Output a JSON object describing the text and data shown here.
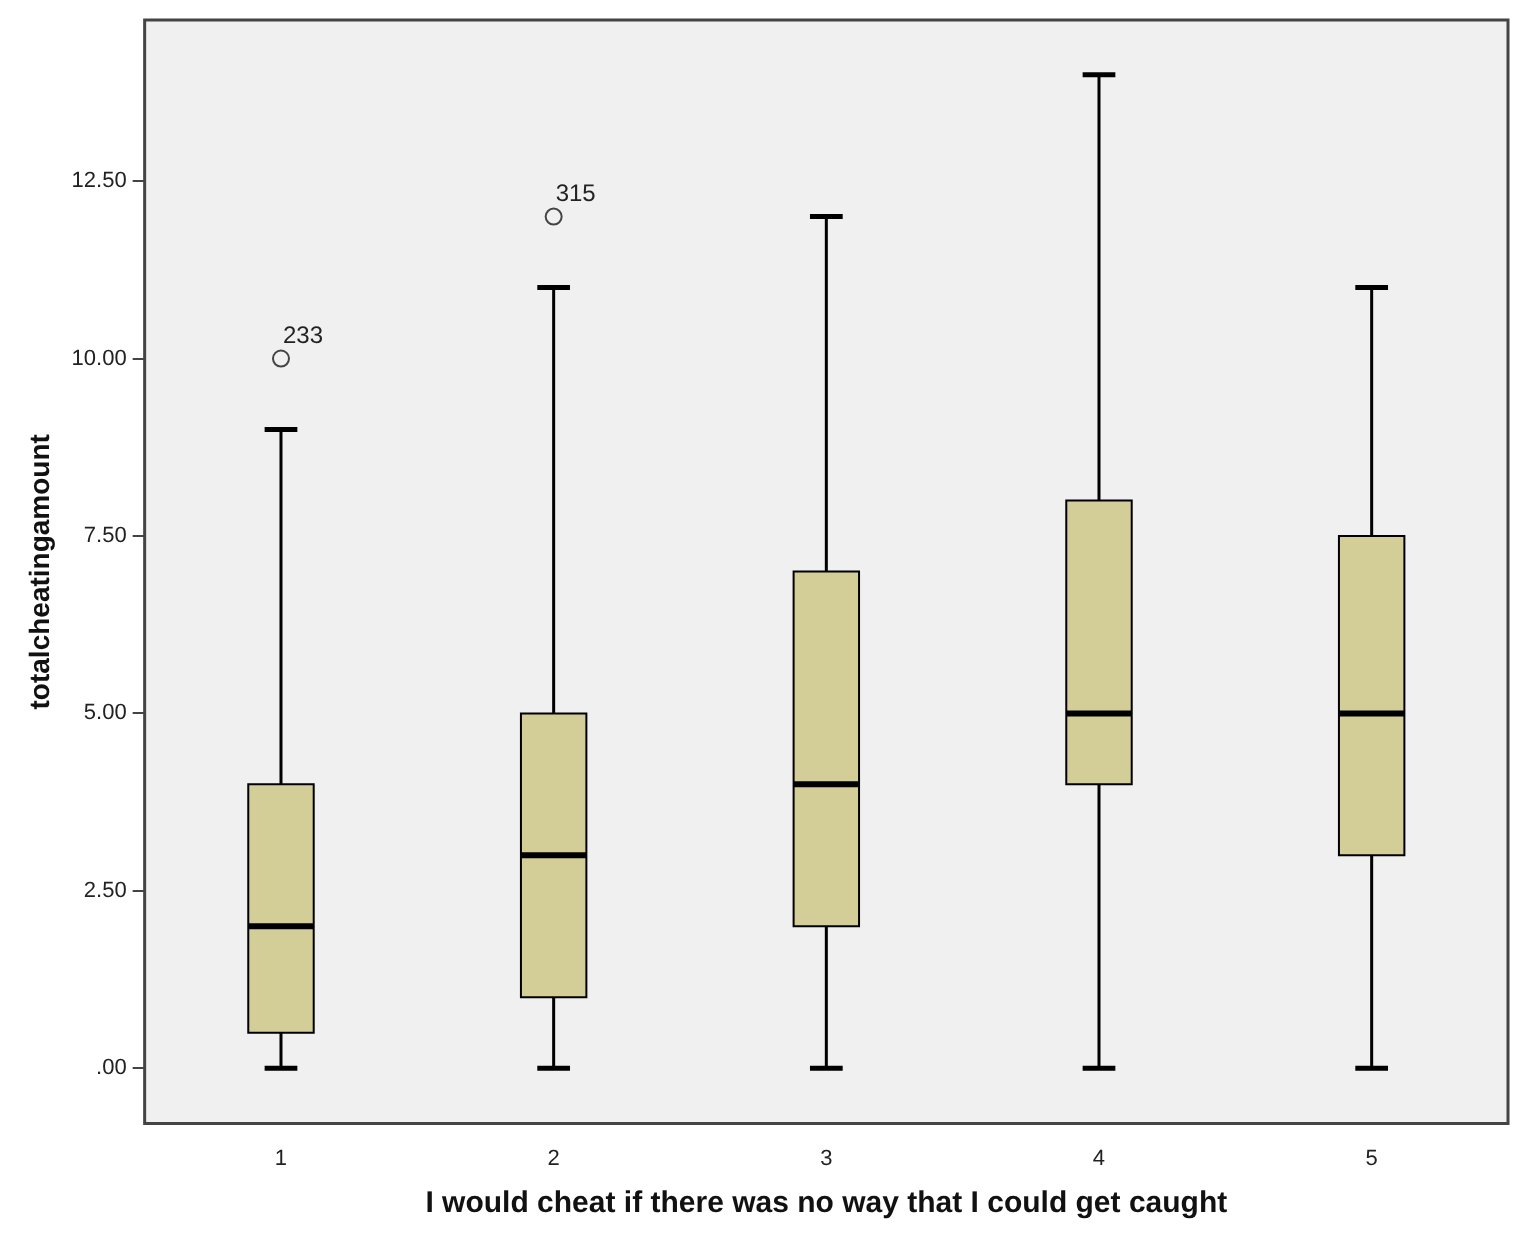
{
  "chart_data": {
    "type": "box",
    "xlabel": "I would cheat if there was no way that I could get caught",
    "ylabel": "totalcheatingamount",
    "categories": [
      "1",
      "2",
      "3",
      "4",
      "5"
    ],
    "color": "#d3ce97",
    "boxes": [
      {
        "low": 0,
        "q1": 0.5,
        "median": 2,
        "q3": 4,
        "high": 9,
        "outliers": [
          10
        ]
      },
      {
        "low": 0,
        "q1": 1,
        "median": 3,
        "q3": 5,
        "high": 11,
        "outliers": [
          12
        ]
      },
      {
        "low": 0,
        "q1": 2,
        "median": 4,
        "q3": 7,
        "high": 12
      },
      {
        "low": 0,
        "q1": 4,
        "median": 5,
        "q3": 8,
        "high": 14
      },
      {
        "low": 0,
        "q1": 3,
        "median": 5,
        "q3": 7.5,
        "high": 11
      }
    ],
    "ylim": [
      -0.78,
      14.77
    ],
    "yticks": [
      {
        "value": 0,
        "label": ".00"
      },
      {
        "value": 2.5,
        "label": "2.50"
      },
      {
        "value": 5,
        "label": "5.00"
      },
      {
        "value": 7.5,
        "label": "7.50"
      },
      {
        "value": 10,
        "label": "10.00"
      },
      {
        "value": 12.5,
        "label": "12.50"
      }
    ],
    "grid": false,
    "legend": false,
    "annotations": [
      "233",
      "315"
    ]
  }
}
